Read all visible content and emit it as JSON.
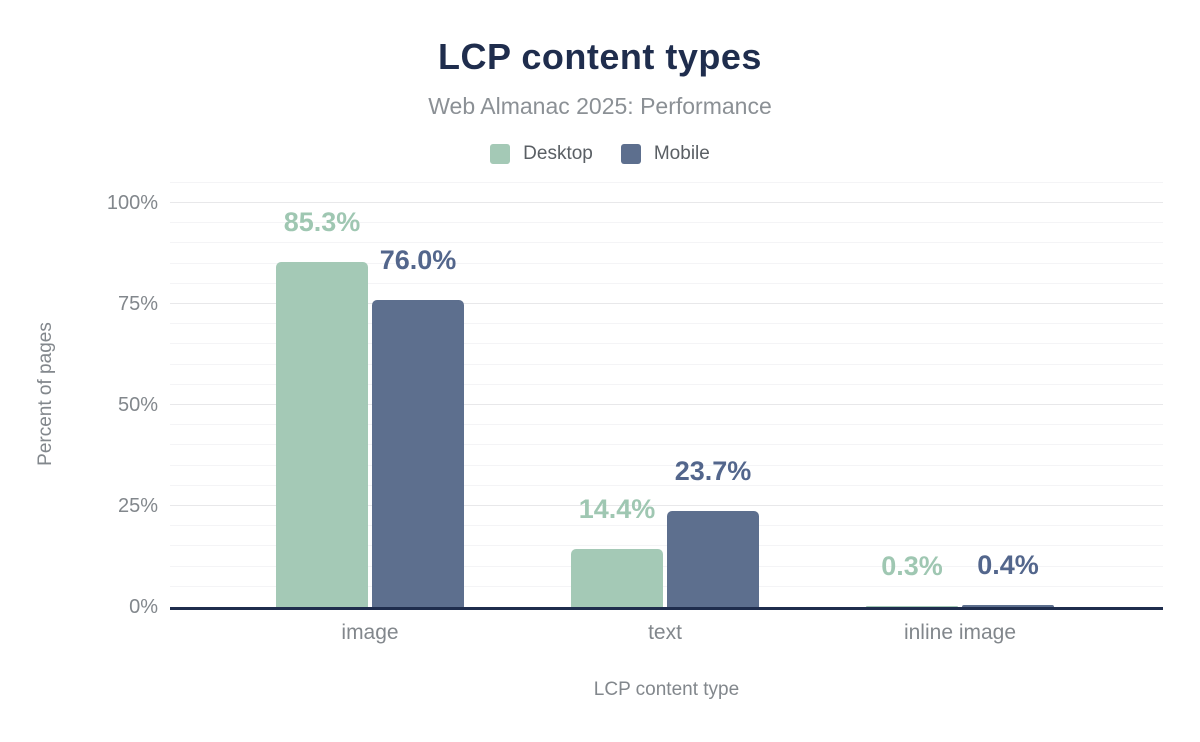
{
  "chart_data": {
    "type": "bar",
    "title": "LCP content types",
    "subtitle": "Web Almanac 2025: Performance",
    "xlabel": "LCP content type",
    "ylabel": "Percent of pages",
    "categories": [
      "image",
      "text",
      "inline image"
    ],
    "series": [
      {
        "name": "Desktop",
        "color": "#a4c9b6",
        "label_color": "#9fc7b2",
        "values": [
          85.3,
          14.4,
          0.3
        ],
        "labels": [
          "85.3%",
          "14.4%",
          "0.3%"
        ]
      },
      {
        "name": "Mobile",
        "color": "#5d6f8e",
        "label_color": "#53668c",
        "values": [
          76.0,
          23.7,
          0.4
        ],
        "labels": [
          "76.0%",
          "23.7%",
          "0.4%"
        ]
      }
    ],
    "ylim": [
      0,
      100
    ],
    "yticks": [
      {
        "value": 0,
        "label": "0%"
      },
      {
        "value": 25,
        "label": "25%"
      },
      {
        "value": 50,
        "label": "50%"
      },
      {
        "value": 75,
        "label": "75%"
      },
      {
        "value": 100,
        "label": "100%"
      }
    ],
    "grid": "horizontal, minor every 5%, major every 25%",
    "legend_position": "top",
    "colors": {
      "title": "#1f2d4d",
      "subtitle": "#8b9095",
      "axis_text": "#82878c",
      "legend_text": "#5a5f64",
      "axis_line": "#1f2d4d",
      "gridline_minor": "#f4f4f6",
      "gridline_major": "#e8e8ea",
      "background": "#ffffff"
    }
  }
}
